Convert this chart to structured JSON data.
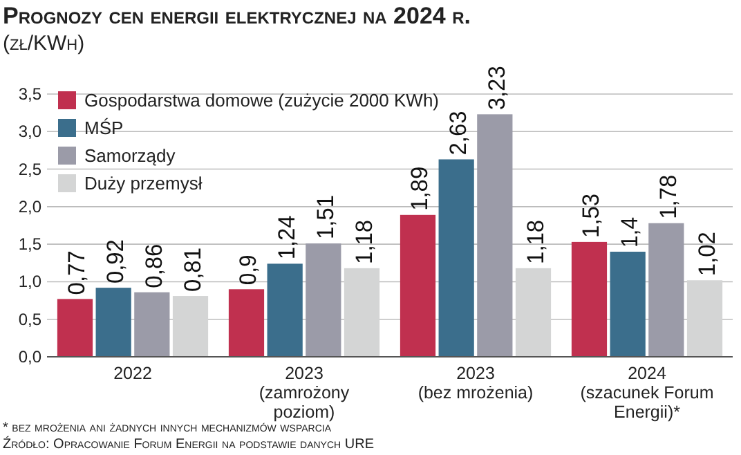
{
  "chart_data": {
    "type": "bar",
    "title": "Prognozy cen energii elektrycznej na 2024 r.",
    "subtitle": "(zł/KWh)",
    "categories": [
      "2022",
      "2023 (zamrożony poziom)",
      "2023 (bez mrożenia)",
      "2024 (szacunek Forum Energii)*"
    ],
    "series": [
      {
        "name": "Gospodarstwa domowe (zużycie 2000 KWh)",
        "color": "#c0304f",
        "values": [
          0.77,
          0.9,
          1.89,
          1.53
        ],
        "value_labels": [
          "0,77",
          "0,9",
          "1,89",
          "1,53"
        ]
      },
      {
        "name": "MŚP",
        "color": "#3b6e8c",
        "values": [
          0.92,
          1.24,
          2.63,
          1.4
        ],
        "value_labels": [
          "0,92",
          "1,24",
          "2,63",
          "1,4"
        ]
      },
      {
        "name": "Samorządy",
        "color": "#9b9ba8",
        "values": [
          0.86,
          1.51,
          3.23,
          1.78
        ],
        "value_labels": [
          "0,86",
          "1,51",
          "3,23",
          "1,78"
        ]
      },
      {
        "name": "Duży przemysł",
        "color": "#d4d5d5",
        "values": [
          0.81,
          1.18,
          1.18,
          1.02
        ],
        "value_labels": [
          "0,81",
          "1,18",
          "1,18",
          "1,02"
        ]
      }
    ],
    "ylim": [
      0,
      3.5
    ],
    "yticks": [
      {
        "value": 0,
        "label": "0,0"
      },
      {
        "value": 0.5,
        "label": "0,5"
      },
      {
        "value": 1,
        "label": "1,0"
      },
      {
        "value": 1.5,
        "label": "1,5"
      },
      {
        "value": 2,
        "label": "2,0"
      },
      {
        "value": 2.5,
        "label": "2,5"
      },
      {
        "value": 3,
        "label": "3,0"
      },
      {
        "value": 3.5,
        "label": "3,5"
      }
    ],
    "grid": "y",
    "legend": "top left",
    "annotations": [
      "* bez mrożenia ani żadnych innych mechanizmów wsparcia",
      "Źródło: Opracowanie Forum Energii na podstawie danych URE"
    ]
  }
}
